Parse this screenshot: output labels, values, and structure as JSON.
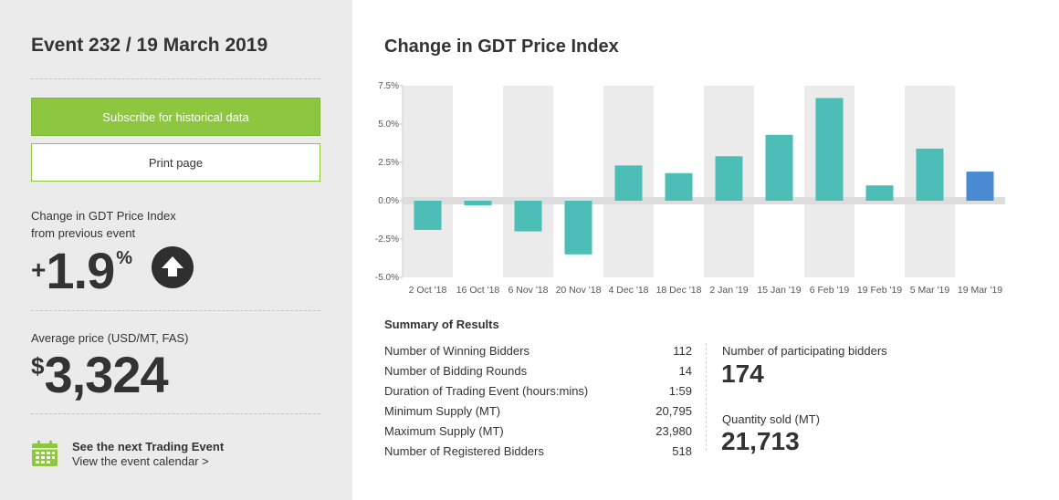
{
  "sidebar": {
    "event_title": "Event 232 / 19 March 2019",
    "subscribe_label": "Subscribe for historical data",
    "print_label": "Print page",
    "change_label_line1": "Change in GDT Price Index",
    "change_label_line2": "from previous event",
    "change_sign": "+",
    "change_value": "1.9",
    "change_unit": "%",
    "change_direction_icon": "arrow-up-icon",
    "avg_price_label": "Average price (USD/MT, FAS)",
    "avg_price_currency": "$",
    "avg_price_value": "3,324",
    "next_event_title": "See the next Trading Event",
    "next_event_link": "View the event calendar >",
    "calendar_icon": "calendar-icon"
  },
  "main": {
    "chart_title": "Change in GDT Price Index"
  },
  "chart_data": {
    "type": "bar",
    "title": "Change in GDT Price Index",
    "categories": [
      "2 Oct '18",
      "16 Oct '18",
      "6 Nov '18",
      "20 Nov '18",
      "4 Dec '18",
      "18 Dec '18",
      "2 Jan '19",
      "15 Jan '19",
      "6 Feb '19",
      "19 Feb '19",
      "5 Mar '19",
      "19 Mar '19"
    ],
    "values": [
      -1.9,
      -0.3,
      -2.0,
      -3.5,
      2.3,
      1.8,
      2.9,
      4.3,
      6.7,
      1.0,
      3.4,
      1.9
    ],
    "ylim": [
      -5.0,
      7.5
    ],
    "yticks": [
      7.5,
      5.0,
      2.5,
      0.0,
      -2.5,
      -5.0
    ],
    "ytick_labels": [
      "7.5%",
      "5.0%",
      "2.5%",
      "0.0%",
      "-2.5%",
      "-5.0%"
    ],
    "colors": {
      "bar": "#4dbdb8",
      "highlight": "#4a8ad3",
      "band": "#ebebeb",
      "zero_band": "#dddddd"
    },
    "highlight_last": true,
    "grid": false
  },
  "summary": {
    "title": "Summary of Results",
    "rows": [
      {
        "label": "Number of Winning Bidders",
        "value": "112"
      },
      {
        "label": "Number of Bidding Rounds",
        "value": "14"
      },
      {
        "label": "Duration of Trading Event (hours:mins)",
        "value": "1:59"
      },
      {
        "label": "Minimum Supply (MT)",
        "value": "20,795"
      },
      {
        "label": "Maximum Supply (MT)",
        "value": "23,980"
      },
      {
        "label": "Number of Registered Bidders",
        "value": "518"
      }
    ],
    "participating_label": "Number of participating bidders",
    "participating_value": "174",
    "quantity_label": "Quantity sold (MT)",
    "quantity_value": "21,713"
  }
}
